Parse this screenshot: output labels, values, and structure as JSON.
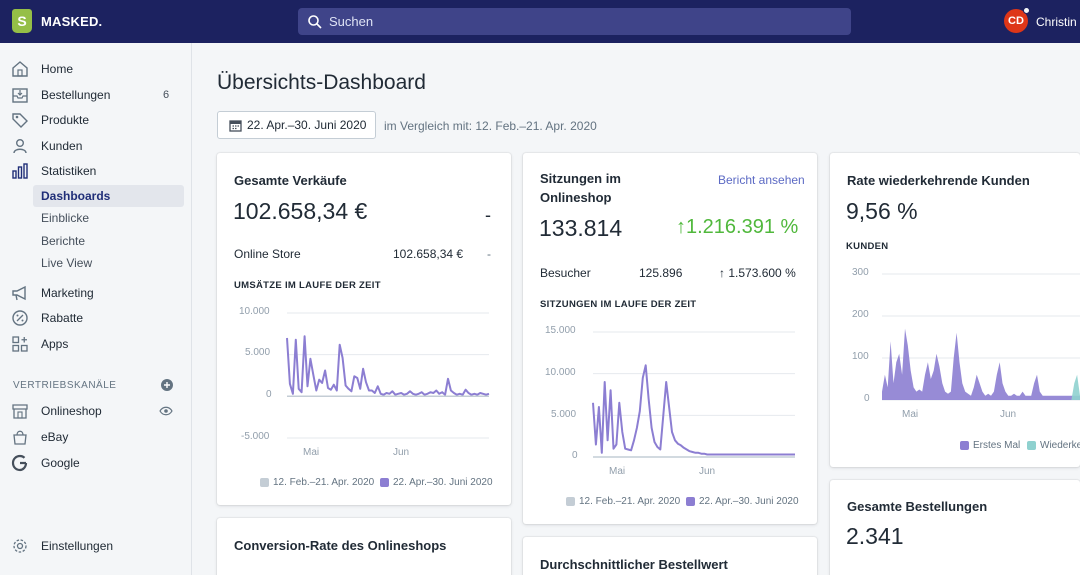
{
  "topbar": {
    "store_name": "MASKED.",
    "logo_letter": "S",
    "search_placeholder": "Suchen",
    "avatar_initials": "CD",
    "username": "Christin"
  },
  "sidebar": {
    "items": [
      {
        "label": "Home",
        "icon": "home-icon"
      },
      {
        "label": "Bestellungen",
        "icon": "orders-icon",
        "badge": "6"
      },
      {
        "label": "Produkte",
        "icon": "tag-icon"
      },
      {
        "label": "Kunden",
        "icon": "person-icon"
      },
      {
        "label": "Statistiken",
        "icon": "bar-chart-icon"
      }
    ],
    "sub_items": [
      "Dashboards",
      "Einblicke",
      "Berichte",
      "Live View"
    ],
    "items2": [
      {
        "label": "Marketing",
        "icon": "megaphone-icon"
      },
      {
        "label": "Rabatte",
        "icon": "discount-icon"
      },
      {
        "label": "Apps",
        "icon": "apps-icon"
      }
    ],
    "section_title": "VERTRIEBSKANÄLE",
    "channels": [
      {
        "label": "Onlineshop",
        "icon": "store-icon"
      },
      {
        "label": "eBay",
        "icon": "bag-icon"
      },
      {
        "label": "Google",
        "icon": "google-icon"
      }
    ],
    "settings_label": "Einstellungen"
  },
  "main": {
    "title": "Übersichts-Dashboard",
    "date_range": "22. Apr.–30. Juni 2020",
    "compare_text": "im Vergleich mit: 12. Feb.–21. Apr. 2020"
  },
  "cards": {
    "sales": {
      "title": "Gesamte Verkäufe",
      "value": "102.658,34 €",
      "delta": "-",
      "row_label": "Online Store",
      "row_value": "102.658,34 €",
      "row_delta": "-",
      "chart_title": "UMSÄTZE IM LAUFE DER ZEIT",
      "y_ticks": [
        "10.000",
        "5.000",
        "0",
        "-5.000"
      ],
      "x_ticks": [
        "Mai",
        "Jun"
      ],
      "legend_prev": "12. Feb.–21. Apr. 2020",
      "legend_cur": "22. Apr.–30. Juni 2020"
    },
    "sessions": {
      "title": "Sitzungen im Onlineshop",
      "link": "Bericht ansehen",
      "value": "133.814",
      "change": "1.216.391 %",
      "row_label": "Besucher",
      "row_value": "125.896",
      "row_change": "1.573.600 %",
      "chart_title": "SITZUNGEN IM LAUFE DER ZEIT",
      "y_ticks": [
        "15.000",
        "10.000",
        "5.000",
        "0"
      ],
      "x_ticks": [
        "Mai",
        "Jun"
      ],
      "legend_prev": "12. Feb.–21. Apr. 2020",
      "legend_cur": "22. Apr.–30. Juni 2020"
    },
    "returning": {
      "title": "Rate wiederkehrende Kunden",
      "value": "9,56 %",
      "sub_title": "KUNDEN",
      "y_ticks": [
        "300",
        "200",
        "100",
        "0"
      ],
      "x_ticks": [
        "Mai",
        "Jun"
      ],
      "legend_first": "Erstes Mal",
      "legend_return": "Wiederke"
    },
    "orders": {
      "title": "Gesamte Bestellungen",
      "value": "2.341"
    },
    "conversion": {
      "title": "Conversion-Rate des Onlineshops"
    },
    "aov": {
      "title": "Durchschnittlicher Bestellwert"
    }
  },
  "colors": {
    "topbar": "#1c2260",
    "accent": "#5c6ac4",
    "series_current": "#8c7ed2",
    "series_previous": "#c4cdd5",
    "series_return": "#8fd1cf",
    "positive": "#50b83c"
  },
  "chart_data": [
    {
      "type": "line",
      "title": "UMSÄTZE IM LAUFE DER ZEIT",
      "x": [
        "22.04",
        "23.04",
        "24.04",
        "25.04",
        "26.04",
        "27.04",
        "28.04",
        "29.04",
        "30.04",
        "01.05",
        "02.05",
        "03.05",
        "04.05",
        "05.05",
        "06.05",
        "07.05",
        "08.05",
        "09.05",
        "10.05",
        "11.05",
        "12.05",
        "13.05",
        "14.05",
        "15.05",
        "16.05",
        "17.05",
        "18.05",
        "19.05",
        "20.05",
        "21.05",
        "22.05",
        "23.05",
        "24.05",
        "25.05",
        "26.05",
        "27.05",
        "28.05",
        "29.05",
        "30.05",
        "31.05",
        "01.06",
        "02.06",
        "03.06",
        "04.06",
        "05.06",
        "06.06",
        "07.06",
        "08.06",
        "09.06",
        "10.06",
        "11.06",
        "12.06",
        "13.06",
        "14.06",
        "15.06",
        "16.06",
        "17.06",
        "18.06",
        "19.06",
        "20.06",
        "21.06",
        "22.06",
        "23.06",
        "24.06",
        "25.06",
        "26.06",
        "27.06",
        "28.06",
        "29.06",
        "30.06"
      ],
      "series": [
        {
          "name": "22. Apr.–30. Juni 2020",
          "values": [
            7000,
            1500,
            300,
            6800,
            900,
            500,
            7200,
            1200,
            4500,
            2600,
            700,
            2000,
            1600,
            3100,
            1000,
            800,
            1400,
            700,
            6200,
            4600,
            1300,
            900,
            600,
            2400,
            2200,
            900,
            3300,
            1700,
            700,
            700,
            400,
            1200,
            300,
            200,
            400,
            300,
            600,
            200,
            300,
            400,
            200,
            300,
            600,
            300,
            200,
            300,
            500,
            200,
            300,
            500,
            400,
            700,
            300,
            500,
            200,
            2100,
            700,
            400,
            200,
            300,
            200,
            800,
            400,
            200,
            300,
            200,
            400,
            300,
            200,
            300
          ]
        },
        {
          "name": "12. Feb.–21. Apr. 2020",
          "values": [
            0,
            0,
            0,
            0,
            0,
            0,
            0,
            0,
            0,
            0,
            0,
            0,
            0,
            0,
            0,
            0,
            0,
            0,
            0,
            0,
            0,
            0,
            0,
            0,
            0,
            0,
            0,
            0,
            0,
            0,
            0,
            0,
            0,
            0,
            0,
            0,
            0,
            0,
            0,
            0,
            0,
            0,
            0,
            0,
            0,
            0,
            0,
            0,
            0,
            0,
            0,
            0,
            0,
            0,
            0,
            0,
            0,
            0,
            0,
            0,
            0,
            0,
            0,
            0,
            0,
            0,
            0,
            0,
            0,
            0
          ]
        }
      ],
      "ylim": [
        -5000,
        10000
      ],
      "y_ticks": [
        10000,
        5000,
        0,
        -5000
      ],
      "x_tick_labels": [
        "Mai",
        "Jun"
      ],
      "legend": "bottom"
    },
    {
      "type": "line",
      "title": "SITZUNGEN IM LAUFE DER ZEIT",
      "x": [
        "22.04",
        "23.04",
        "24.04",
        "25.04",
        "26.04",
        "27.04",
        "28.04",
        "29.04",
        "30.04",
        "01.05",
        "02.05",
        "03.05",
        "04.05",
        "05.05",
        "06.05",
        "07.05",
        "08.05",
        "09.05",
        "10.05",
        "11.05",
        "12.05",
        "13.05",
        "14.05",
        "15.05",
        "16.05",
        "17.05",
        "18.05",
        "19.05",
        "20.05",
        "21.05",
        "22.05",
        "23.05",
        "24.05",
        "25.05",
        "26.05",
        "27.05",
        "28.05",
        "29.05",
        "30.05",
        "31.05",
        "01.06",
        "02.06",
        "03.06",
        "04.06",
        "05.06",
        "06.06",
        "07.06",
        "08.06",
        "09.06",
        "10.06",
        "11.06",
        "12.06",
        "13.06",
        "14.06",
        "15.06",
        "16.06",
        "17.06",
        "18.06",
        "19.06",
        "20.06",
        "21.06",
        "22.06",
        "23.06",
        "24.06",
        "25.06",
        "26.06",
        "27.06",
        "28.06",
        "29.06",
        "30.06"
      ],
      "series": [
        {
          "name": "22. Apr.–30. Juni 2020",
          "values": [
            6500,
            1500,
            6000,
            500,
            9000,
            2000,
            8000,
            1000,
            1500,
            6500,
            3000,
            1000,
            900,
            800,
            2000,
            3500,
            5500,
            9500,
            11000,
            7000,
            3500,
            1800,
            1200,
            900,
            5000,
            9000,
            6000,
            3000,
            2000,
            1600,
            1400,
            1100,
            900,
            700,
            600,
            500,
            500,
            400,
            400,
            300,
            300,
            300,
            300,
            300,
            300,
            300,
            300,
            300,
            300,
            300,
            300,
            300,
            300,
            300,
            300,
            300,
            300,
            300,
            300,
            300,
            300,
            300,
            300,
            300,
            300,
            300,
            300,
            300,
            300,
            300
          ]
        },
        {
          "name": "12. Feb.–21. Apr. 2020",
          "values": [
            0,
            0,
            0,
            0,
            0,
            0,
            0,
            0,
            0,
            0,
            0,
            0,
            0,
            0,
            0,
            0,
            0,
            0,
            0,
            0,
            0,
            0,
            0,
            0,
            0,
            0,
            0,
            0,
            0,
            0,
            0,
            0,
            0,
            0,
            0,
            0,
            0,
            0,
            0,
            0,
            0,
            0,
            0,
            0,
            0,
            0,
            0,
            0,
            0,
            0,
            0,
            0,
            0,
            0,
            0,
            0,
            0,
            0,
            0,
            0,
            0,
            0,
            0,
            0,
            0,
            0,
            0,
            0,
            0,
            0
          ]
        }
      ],
      "ylim": [
        0,
        15000
      ],
      "y_ticks": [
        15000,
        10000,
        5000,
        0
      ],
      "x_tick_labels": [
        "Mai",
        "Jun"
      ],
      "legend": "bottom"
    },
    {
      "type": "area",
      "title": "KUNDEN",
      "x": [
        "22.04",
        "23.04",
        "24.04",
        "25.04",
        "26.04",
        "27.04",
        "28.04",
        "29.04",
        "30.04",
        "01.05",
        "02.05",
        "03.05",
        "04.05",
        "05.05",
        "06.05",
        "07.05",
        "08.05",
        "09.05",
        "10.05",
        "11.05",
        "12.05",
        "13.05",
        "14.05",
        "15.05",
        "16.05",
        "17.05",
        "18.05",
        "19.05",
        "20.05",
        "21.05",
        "22.05",
        "23.05",
        "24.05",
        "25.05",
        "26.05",
        "27.05",
        "28.05",
        "29.05",
        "30.05",
        "31.05",
        "01.06",
        "02.06",
        "03.06",
        "04.06",
        "05.06",
        "06.06",
        "07.06",
        "08.06",
        "09.06",
        "10.06",
        "11.06",
        "12.06",
        "13.06",
        "14.06",
        "15.06",
        "16.06",
        "17.06",
        "18.06",
        "19.06",
        "20.06",
        "21.06",
        "22.06",
        "23.06",
        "24.06",
        "25.06",
        "26.06",
        "27.06",
        "28.06",
        "29.06",
        "30.06"
      ],
      "series": [
        {
          "name": "Erstes Mal",
          "values": [
            20,
            60,
            30,
            140,
            40,
            90,
            110,
            60,
            170,
            130,
            70,
            30,
            20,
            25,
            20,
            60,
            90,
            50,
            70,
            110,
            80,
            40,
            20,
            15,
            20,
            100,
            160,
            90,
            40,
            20,
            15,
            10,
            30,
            60,
            40,
            20,
            10,
            15,
            10,
            20,
            60,
            90,
            40,
            20,
            10,
            10,
            15,
            10,
            10,
            20,
            10,
            10,
            10,
            40,
            60,
            20,
            10,
            10,
            10,
            10,
            10,
            10,
            10,
            10,
            10,
            10,
            10,
            10,
            10,
            10
          ]
        },
        {
          "name": "Wiederkehrend",
          "values": [
            0,
            0,
            0,
            0,
            0,
            0,
            0,
            0,
            0,
            0,
            0,
            0,
            0,
            0,
            0,
            0,
            0,
            0,
            0,
            0,
            0,
            0,
            0,
            0,
            0,
            0,
            0,
            0,
            0,
            0,
            0,
            0,
            0,
            0,
            0,
            0,
            0,
            0,
            0,
            0,
            0,
            0,
            0,
            0,
            0,
            0,
            0,
            0,
            0,
            0,
            0,
            0,
            0,
            0,
            0,
            0,
            0,
            0,
            0,
            0,
            0,
            0,
            0,
            0,
            0,
            0,
            0,
            40,
            60,
            10
          ]
        }
      ],
      "ylim": [
        0,
        300
      ],
      "y_ticks": [
        300,
        200,
        100,
        0
      ],
      "x_tick_labels": [
        "Mai",
        "Jun"
      ],
      "legend": "bottom-right"
    }
  ]
}
